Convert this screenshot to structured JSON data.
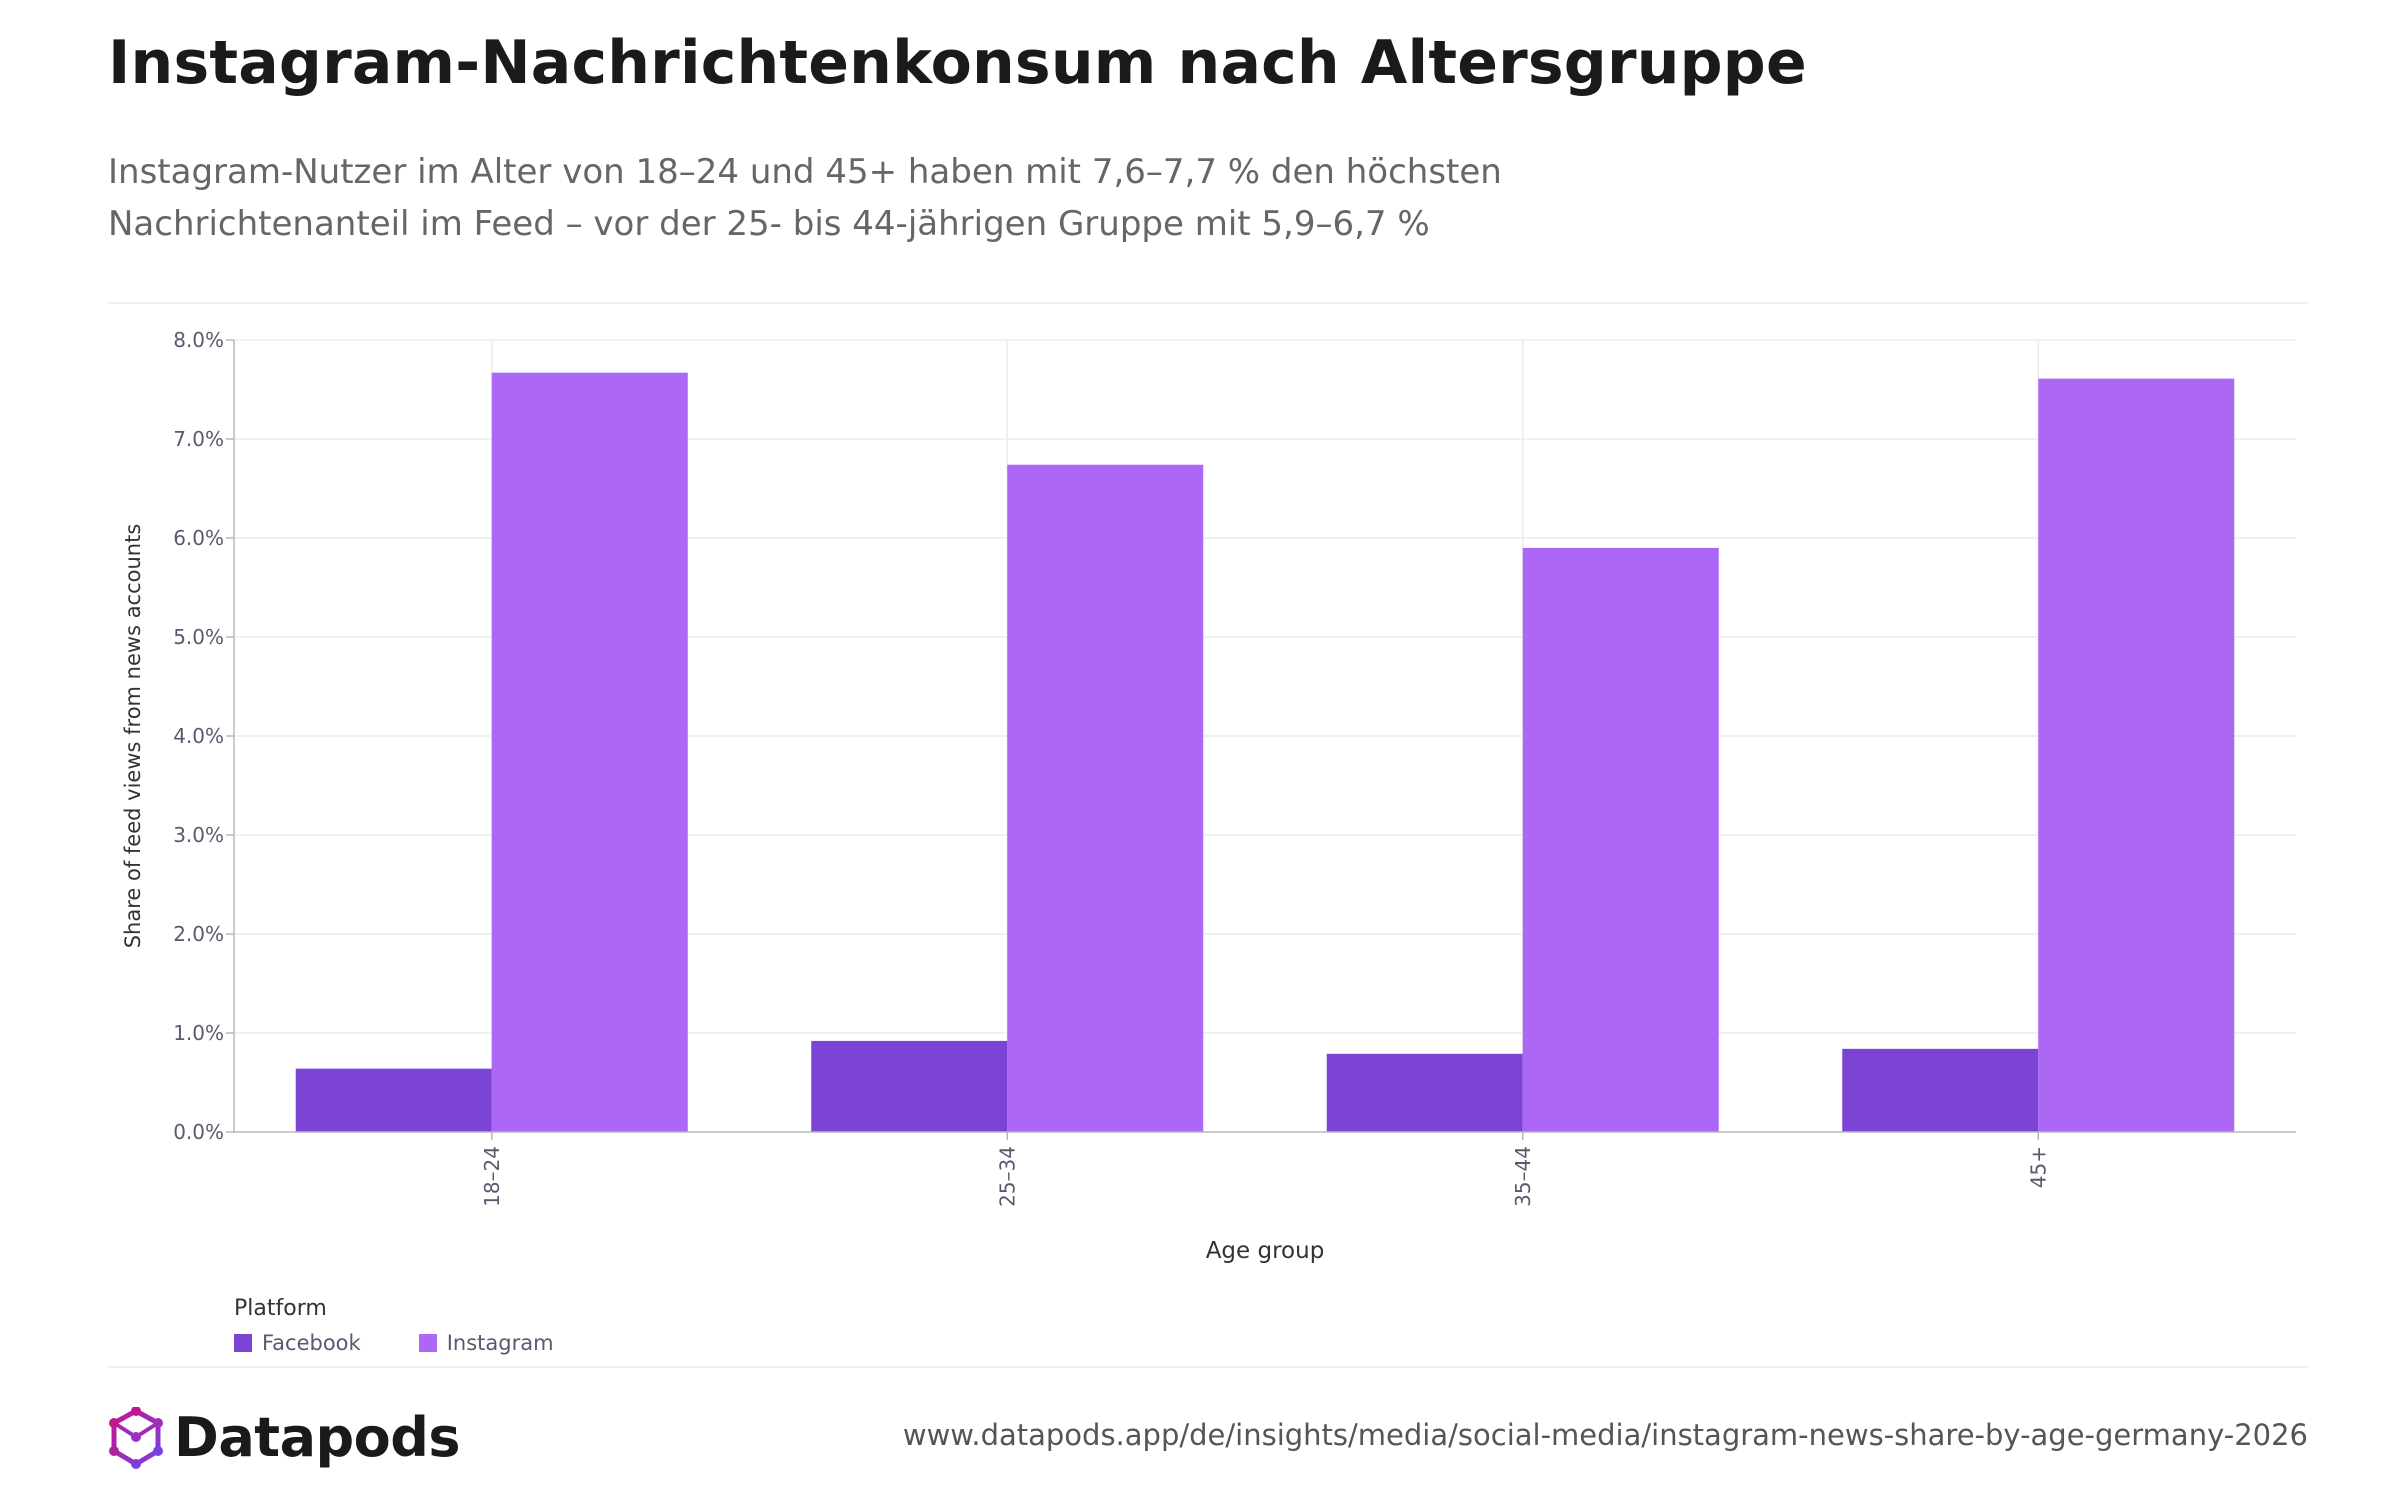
{
  "header": {
    "title": "Instagram-Nachrichtenkonsum nach Altersgruppe",
    "subtitle_line1": "Instagram-Nutzer im Alter von 18–24 und 45+ haben mit 7,6–7,7 % den höchsten",
    "subtitle_line2": "Nachrichtenanteil im Feed – vor der 25- bis 44-jährigen Gruppe mit 5,9–6,7 %"
  },
  "chart_data": {
    "type": "bar",
    "categories": [
      "18–24",
      "25–34",
      "35–44",
      "45+"
    ],
    "series": [
      {
        "name": "Facebook",
        "color": "#7b44d4",
        "values": [
          0.64,
          0.92,
          0.79,
          0.84
        ]
      },
      {
        "name": "Instagram",
        "color": "#ad67f5",
        "values": [
          7.67,
          6.74,
          5.9,
          7.61
        ]
      }
    ],
    "xlabel": "Age group",
    "ylabel": "Share of feed views from news accounts",
    "ylim": [
      0,
      8
    ],
    "yticks": [
      "0.0%",
      "1.0%",
      "2.0%",
      "3.0%",
      "4.0%",
      "5.0%",
      "6.0%",
      "7.0%",
      "8.0%"
    ],
    "grid": true,
    "legend_title": "Platform",
    "legend_placement": "bottom-left"
  },
  "footer": {
    "brand": "Datapods",
    "url": "www.datapods.app/de/insights/media/social-media/instagram-news-share-by-age-germany-2026"
  }
}
